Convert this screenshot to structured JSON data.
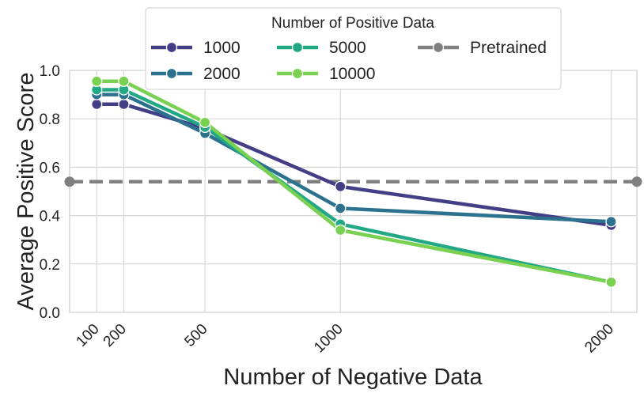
{
  "chart_data": {
    "type": "line",
    "xlabel": "Number of Negative Data",
    "ylabel": "Average Positive Score",
    "x": [
      100,
      200,
      500,
      1000,
      2000
    ],
    "x_tick_labels": [
      "100",
      "200",
      "500",
      "1000",
      "2000"
    ],
    "xlim": [
      0,
      2095
    ],
    "ylim": [
      0,
      1.0
    ],
    "y_ticks": [
      0.0,
      0.2,
      0.4,
      0.6,
      0.8,
      1.0
    ],
    "y_tick_labels": [
      "0.0",
      "0.2",
      "0.4",
      "0.6",
      "0.8",
      "1.0"
    ],
    "grid": true,
    "legend": {
      "title": "Number of Positive Data",
      "placement": "top-center",
      "columns": 3
    },
    "series": [
      {
        "name": "1000",
        "color": "#433e85",
        "values": [
          0.86,
          0.86,
          0.76,
          0.52,
          0.36
        ]
      },
      {
        "name": "2000",
        "color": "#2c728e",
        "values": [
          0.9,
          0.9,
          0.74,
          0.43,
          0.375
        ]
      },
      {
        "name": "5000",
        "color": "#22a884",
        "values": [
          0.92,
          0.92,
          0.765,
          0.365,
          0.125
        ]
      },
      {
        "name": "10000",
        "color": "#7ad151",
        "values": [
          0.955,
          0.955,
          0.785,
          0.34,
          0.125
        ]
      }
    ],
    "reference_line": {
      "name": "Pretrained",
      "color": "#808080",
      "value": 0.54,
      "style": "dashed"
    }
  }
}
